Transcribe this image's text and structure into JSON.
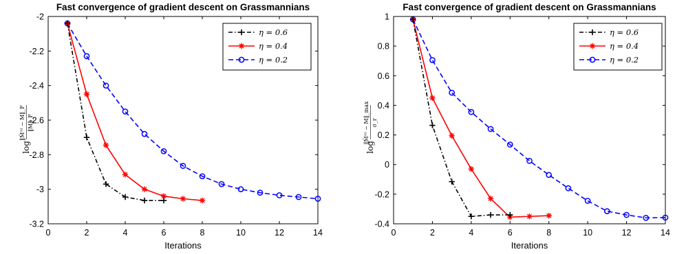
{
  "colors": {
    "eta06": "#000000",
    "eta04": "#ff0000",
    "eta02": "#0000ff",
    "axis": "#000000",
    "background": "#ffffff"
  },
  "chart_data": [
    {
      "type": "line",
      "title": "Fast convergence of gradient descent on Grassmannians",
      "xlabel": "Iterations",
      "ylabel": {
        "log": "log",
        "numerator": "‖M̂⁽ᵗ⁾ − M‖_F",
        "denominator": "‖M‖_F"
      },
      "xlim": [
        0,
        14
      ],
      "ylim": [
        -3.2,
        -2.0
      ],
      "xticks": [
        0,
        2,
        4,
        6,
        8,
        10,
        12,
        14
      ],
      "xtick_labels": [
        "0",
        "2",
        "4",
        "6",
        "8",
        "10",
        "12",
        "14"
      ],
      "yticks": [
        -3.2,
        -3.0,
        -2.8,
        -2.6,
        -2.4,
        -2.2,
        -2.0
      ],
      "ytick_labels": [
        "-3.2",
        "-3",
        "-2.8",
        "-2.6",
        "-2.4",
        "-2.2",
        "-2"
      ],
      "grid": false,
      "legend_position": "top-right",
      "series": [
        {
          "name": "η = 0.6",
          "color": "#000000",
          "dash": "dash-dot",
          "marker": "plus",
          "x": [
            1,
            2,
            3,
            4,
            5,
            6
          ],
          "y": [
            -2.04,
            -2.7,
            -2.97,
            -3.045,
            -3.065,
            -3.065
          ]
        },
        {
          "name": "η = 0.4",
          "color": "#ff0000",
          "dash": "solid",
          "marker": "asterisk",
          "x": [
            1,
            2,
            3,
            4,
            5,
            6,
            7,
            8
          ],
          "y": [
            -2.04,
            -2.45,
            -2.745,
            -2.915,
            -3.0,
            -3.04,
            -3.055,
            -3.065
          ]
        },
        {
          "name": "η = 0.2",
          "color": "#0000ff",
          "dash": "dashed",
          "marker": "circle",
          "x": [
            1,
            2,
            3,
            4,
            5,
            6,
            7,
            8,
            9,
            10,
            11,
            12,
            13,
            14
          ],
          "y": [
            -2.04,
            -2.23,
            -2.4,
            -2.55,
            -2.68,
            -2.78,
            -2.865,
            -2.925,
            -2.97,
            -3.0,
            -3.02,
            -3.035,
            -3.045,
            -3.055
          ]
        }
      ]
    },
    {
      "type": "line",
      "title": "Fast convergence of gradient descent on Grassmannians",
      "xlabel": "Iterations",
      "ylabel": {
        "log": "log",
        "numerator": "‖M̂⁽ᵗ⁾ − M‖_max",
        "denominator": "σ_r"
      },
      "xlim": [
        0,
        14
      ],
      "ylim": [
        -0.4,
        1.0
      ],
      "xticks": [
        0,
        2,
        4,
        6,
        8,
        10,
        12,
        14
      ],
      "xtick_labels": [
        "0",
        "2",
        "4",
        "6",
        "8",
        "10",
        "12",
        "14"
      ],
      "yticks": [
        -0.4,
        -0.2,
        0,
        0.2,
        0.4,
        0.6,
        0.8,
        1.0
      ],
      "ytick_labels": [
        "-0.4",
        "-0.2",
        "0",
        "0.2",
        "0.4",
        "0.6",
        "0.8",
        "1"
      ],
      "grid": false,
      "legend_position": "top-right",
      "series": [
        {
          "name": "η = 0.6",
          "color": "#000000",
          "dash": "dash-dot",
          "marker": "plus",
          "x": [
            1,
            2,
            3,
            4,
            5,
            6
          ],
          "y": [
            0.98,
            0.265,
            -0.115,
            -0.35,
            -0.34,
            -0.34
          ]
        },
        {
          "name": "η = 0.4",
          "color": "#ff0000",
          "dash": "solid",
          "marker": "asterisk",
          "x": [
            1,
            2,
            3,
            4,
            5,
            6,
            7,
            8
          ],
          "y": [
            0.98,
            0.45,
            0.195,
            -0.03,
            -0.23,
            -0.355,
            -0.35,
            -0.345
          ]
        },
        {
          "name": "η = 0.2",
          "color": "#0000ff",
          "dash": "dashed",
          "marker": "circle",
          "x": [
            1,
            2,
            3,
            4,
            5,
            6,
            7,
            8,
            9,
            10,
            11,
            12,
            13,
            14
          ],
          "y": [
            0.98,
            0.705,
            0.485,
            0.355,
            0.24,
            0.135,
            0.025,
            -0.07,
            -0.16,
            -0.245,
            -0.315,
            -0.34,
            -0.36,
            -0.358
          ]
        }
      ]
    }
  ]
}
